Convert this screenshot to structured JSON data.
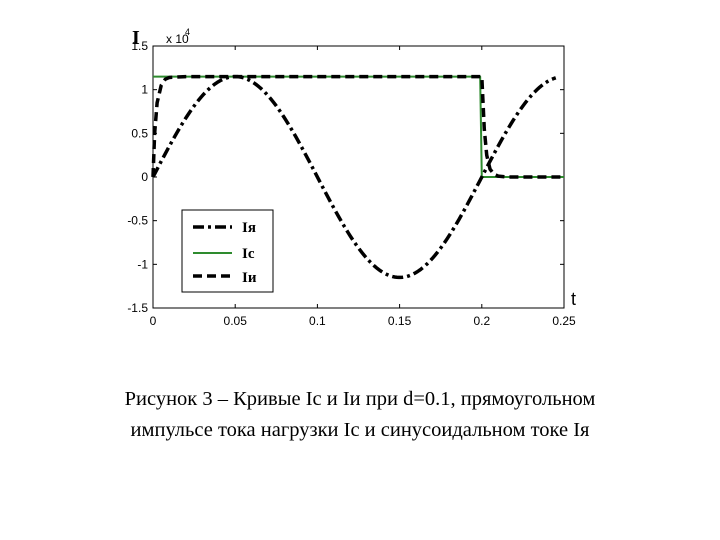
{
  "chart_data": {
    "type": "line",
    "ylabel": "I",
    "y_multiplier": "x 10",
    "y_multiplier_exp": "4",
    "xlabel": "t",
    "xlim": [
      0,
      0.25
    ],
    "ylim": [
      -1.5,
      1.5
    ],
    "x_ticks": [
      "0",
      "0.05",
      "0.1",
      "0.15",
      "0.2",
      "0.25"
    ],
    "x_tick_values": [
      0,
      0.05,
      0.1,
      0.15,
      0.2,
      0.25
    ],
    "y_ticks": [
      "1.5",
      "1",
      "0.5",
      "0",
      "-0.5",
      "-1",
      "-1.5"
    ],
    "y_tick_values": [
      1.5,
      1,
      0.5,
      0,
      -0.5,
      -1,
      -1.5
    ],
    "grid": false,
    "legend_position": "bottom-left",
    "series": [
      {
        "name": "Iя",
        "style": "dash-dot",
        "color": "#000000",
        "x": [
          0,
          0.0125,
          0.025,
          0.0375,
          0.05,
          0.0625,
          0.075,
          0.0875,
          0.1,
          0.1125,
          0.125,
          0.1375,
          0.15,
          0.1625,
          0.175,
          0.1875,
          0.2,
          0.2125,
          0.225,
          0.2375,
          0.245
        ],
        "y": [
          0,
          0.45,
          0.83,
          1.08,
          1.15,
          1.08,
          0.83,
          0.45,
          0,
          -0.45,
          -0.83,
          -1.08,
          -1.15,
          -1.08,
          -0.83,
          -0.45,
          0,
          0.45,
          0.83,
          1.08,
          1.15
        ]
      },
      {
        "name": "Iс",
        "style": "solid",
        "color": "#2e8b2e",
        "x": [
          0,
          0.001,
          0.199,
          0.2,
          0.25
        ],
        "y": [
          1.15,
          1.15,
          1.15,
          0,
          0
        ],
        "x_start": 0
      },
      {
        "name": "Iи",
        "style": "dashed",
        "color": "#000000",
        "x": [
          0,
          0.001,
          0.0025,
          0.005,
          0.0075,
          0.01,
          0.02,
          0.03,
          0.2,
          0.2015,
          0.203,
          0.205,
          0.2075,
          0.21,
          0.215,
          0.25
        ],
        "y": [
          0,
          0.5,
          0.85,
          1.05,
          1.12,
          1.14,
          1.15,
          1.15,
          1.15,
          0.55,
          0.25,
          0.09,
          0.03,
          0.01,
          0,
          0
        ]
      }
    ]
  },
  "caption": {
    "line1": "Рисунок 3 – Кривые Iс и Iи при d=0.1, прямоугольном",
    "line2": "импульсе тока нагрузки Iс и синусоидальном токе Iя"
  }
}
